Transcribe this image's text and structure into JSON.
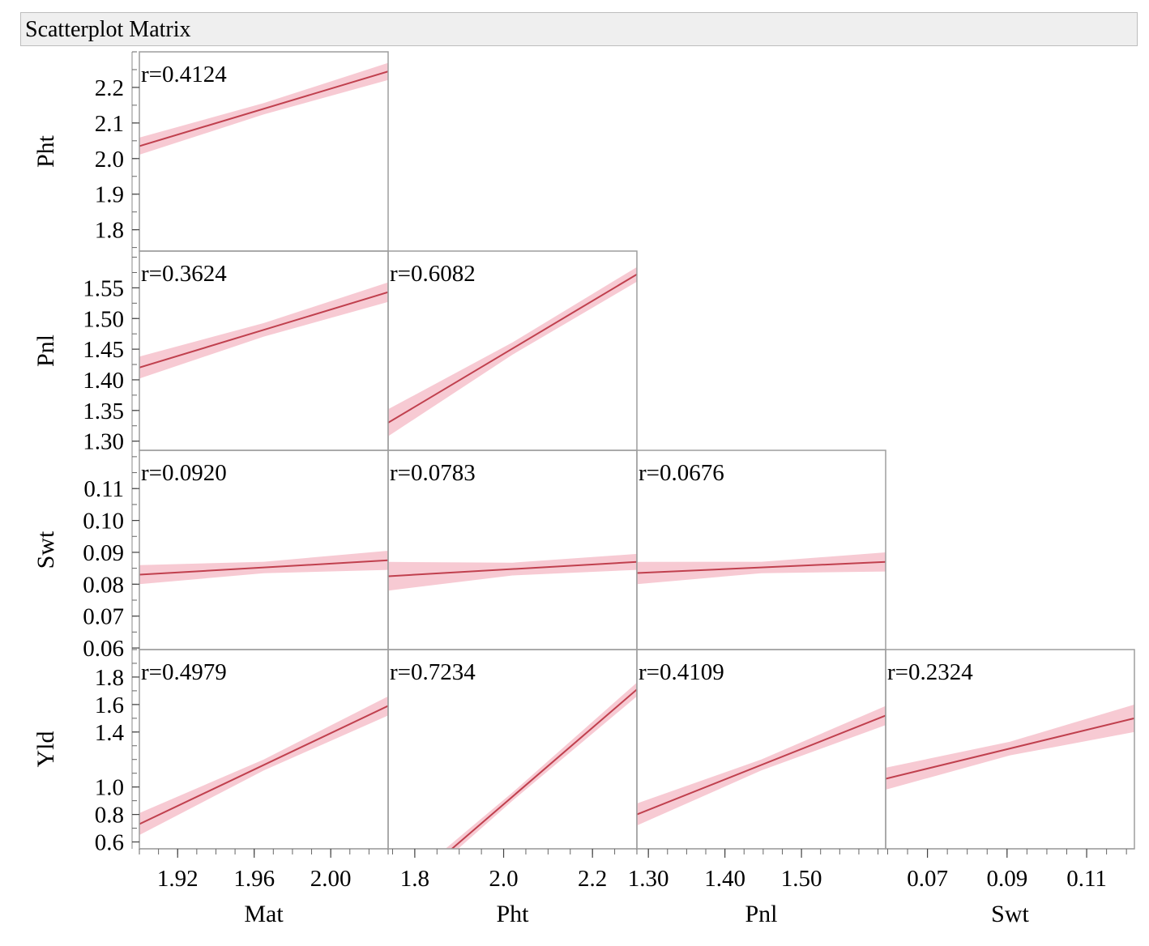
{
  "title": "Scatterplot Matrix",
  "chart_data": {
    "type": "scatter",
    "subtype": "scatterplot-matrix-fit-lines",
    "variables": [
      {
        "name": "Mat",
        "axis_ticks": [
          1.92,
          1.96,
          2.0
        ],
        "tick_labels": [
          "1.92",
          "1.96",
          "2.00"
        ],
        "range": [
          1.9,
          2.03
        ],
        "minor_step": 0.01
      },
      {
        "name": "Pht",
        "axis_ticks": [
          1.8,
          1.9,
          2.0,
          2.1,
          2.2
        ],
        "tick_labels": [
          "1.8",
          "1.9",
          "2.0",
          "2.1",
          "2.2"
        ],
        "x_ticks": [
          1.8,
          2.0,
          2.2
        ],
        "x_tick_labels": [
          "1.8",
          "2.0",
          "2.2"
        ],
        "range": [
          1.74,
          2.3
        ],
        "minor_step": 0.05
      },
      {
        "name": "Pnl",
        "axis_ticks": [
          1.3,
          1.35,
          1.4,
          1.45,
          1.5,
          1.55
        ],
        "tick_labels": [
          "1.30",
          "1.35",
          "1.40",
          "1.45",
          "1.50",
          "1.55"
        ],
        "x_ticks": [
          1.3,
          1.4,
          1.5
        ],
        "x_tick_labels": [
          "1.30",
          "1.40",
          "1.50"
        ],
        "range": [
          1.285,
          1.61
        ],
        "minor_step": 0.025
      },
      {
        "name": "Swt",
        "axis_ticks": [
          0.06,
          0.07,
          0.08,
          0.09,
          0.1,
          0.11
        ],
        "tick_labels": [
          "0.06",
          "0.07",
          "0.08",
          "0.09",
          "0.10",
          "0.11"
        ],
        "x_ticks": [
          0.07,
          0.09,
          0.11
        ],
        "x_tick_labels": [
          "0.07",
          "0.09",
          "0.11"
        ],
        "range": [
          0.0595,
          0.122
        ],
        "minor_step": 0.005
      },
      {
        "name": "Yld",
        "axis_ticks": [
          0.6,
          0.8,
          1.0,
          1.4,
          1.6,
          1.8
        ],
        "tick_labels": [
          "0.6",
          "0.8",
          "1.0",
          "1.4",
          "1.6",
          "1.8"
        ],
        "range": [
          0.55,
          2.0
        ],
        "minor_step": 0.1
      }
    ],
    "row_labels": [
      "Pht",
      "Pnl",
      "Swt",
      "Yld"
    ],
    "column_labels": [
      "Mat",
      "Pht",
      "Pnl",
      "Swt"
    ],
    "cells": [
      {
        "row": "Pht",
        "col": "Mat",
        "r_label": "r=0.4124",
        "fit": {
          "x": [
            1.9,
            2.03
          ],
          "y": [
            2.035,
            2.245
          ]
        },
        "band": [
          0.024,
          0.016,
          0.024
        ]
      },
      {
        "row": "Pnl",
        "col": "Mat",
        "r_label": "r=0.3624",
        "fit": {
          "x": [
            1.9,
            2.03
          ],
          "y": [
            1.42,
            1.543
          ]
        },
        "band": [
          0.018,
          0.011,
          0.016
        ]
      },
      {
        "row": "Pnl",
        "col": "Pht",
        "r_label": "r=0.6082",
        "fit": {
          "x": [
            1.74,
            2.3
          ],
          "y": [
            1.33,
            1.572
          ]
        },
        "band": [
          0.022,
          0.01,
          0.012
        ]
      },
      {
        "row": "Swt",
        "col": "Mat",
        "r_label": "r=0.0920",
        "fit": {
          "x": [
            1.9,
            2.03
          ],
          "y": [
            0.083,
            0.0875
          ]
        },
        "band": [
          0.003,
          0.0018,
          0.003
        ]
      },
      {
        "row": "Swt",
        "col": "Pht",
        "r_label": "r=0.0783",
        "fit": {
          "x": [
            1.74,
            2.3
          ],
          "y": [
            0.0825,
            0.087
          ]
        },
        "band": [
          0.0045,
          0.002,
          0.0025
        ]
      },
      {
        "row": "Swt",
        "col": "Pnl",
        "r_label": "r=0.0676",
        "fit": {
          "x": [
            1.285,
            1.61
          ],
          "y": [
            0.0835,
            0.087
          ]
        },
        "band": [
          0.0035,
          0.0018,
          0.003
        ]
      },
      {
        "row": "Yld",
        "col": "Mat",
        "r_label": "r=0.4979",
        "fit": {
          "x": [
            1.9,
            2.03
          ],
          "y": [
            0.73,
            1.59
          ]
        },
        "band": [
          0.08,
          0.04,
          0.07
        ]
      },
      {
        "row": "Yld",
        "col": "Pht",
        "r_label": "r=0.7234",
        "fit": {
          "x": [
            1.74,
            2.3
          ],
          "y": [
            0.15,
            1.71
          ]
        },
        "band": [
          0.05,
          0.03,
          0.05
        ]
      },
      {
        "row": "Yld",
        "col": "Pnl",
        "r_label": "r=0.4109",
        "fit": {
          "x": [
            1.285,
            1.61
          ],
          "y": [
            0.8,
            1.52
          ]
        },
        "band": [
          0.08,
          0.04,
          0.07
        ]
      },
      {
        "row": "Yld",
        "col": "Swt",
        "r_label": "r=0.2324",
        "fit": {
          "x": [
            0.0595,
            0.122
          ],
          "y": [
            1.06,
            1.5
          ]
        },
        "band": [
          0.08,
          0.05,
          0.1
        ]
      }
    ],
    "colors": {
      "fit_line": "#c0404e",
      "confidence_band": "#f4b8c4",
      "frame": "#9e9e9e"
    },
    "grid": false,
    "legend": "none"
  }
}
